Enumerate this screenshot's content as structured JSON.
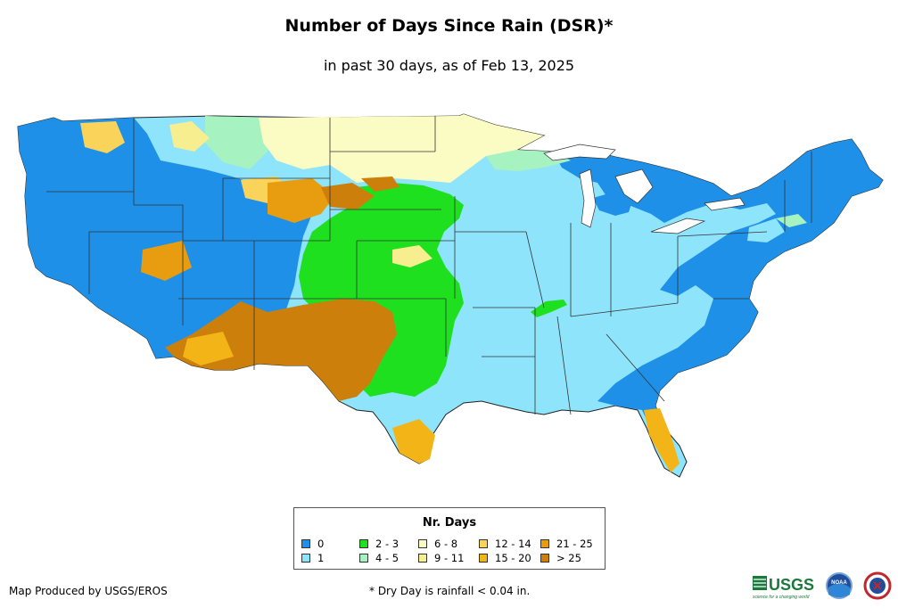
{
  "title": "Number of Days Since Rain (DSR)*",
  "subtitle": "in past 30 days, as of Feb 13, 2025",
  "legend": {
    "title": "Nr. Days",
    "items": [
      {
        "label": "0",
        "color": "#1e90e8"
      },
      {
        "label": "1",
        "color": "#8ee4fb"
      },
      {
        "label": "2 - 3",
        "color": "#1ee01e"
      },
      {
        "label": "4 - 5",
        "color": "#a6f2c0"
      },
      {
        "label": "6 - 8",
        "color": "#fbfbc4"
      },
      {
        "label": "9 - 11",
        "color": "#f7ee90"
      },
      {
        "label": "12 - 14",
        "color": "#f9d35a"
      },
      {
        "label": "15 - 20",
        "color": "#f2b417"
      },
      {
        "label": "21 - 25",
        "color": "#e89d10"
      },
      {
        "label": "> 25",
        "color": "#cc7f0a"
      }
    ]
  },
  "footer": {
    "producer": "Map Produced by USGS/EROS",
    "note": "* Dry Day is rainfall < 0.04 in."
  },
  "logos": {
    "usgs_text": "USGS",
    "usgs_tagline": "science for a changing world",
    "noaa_text": "NOAA"
  }
}
